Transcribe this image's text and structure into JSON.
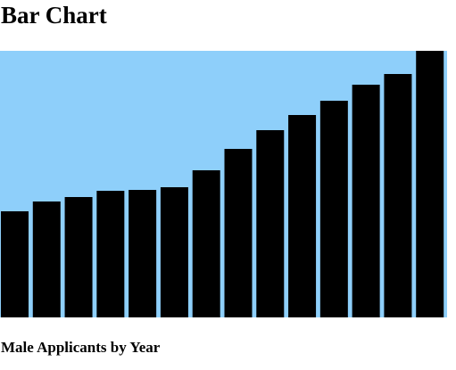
{
  "chart_data": {
    "type": "bar",
    "title": "Bar Chart",
    "caption": "Male Applicants by Year",
    "categories": [
      null,
      null,
      null,
      null,
      null,
      null,
      null,
      null,
      null,
      null,
      null,
      null,
      null,
      null
    ],
    "values": [
      119,
      130,
      135,
      142,
      143,
      146,
      165,
      189,
      210,
      227,
      243,
      261,
      273,
      299
    ],
    "color": "#000000",
    "background": "#8ecffa",
    "ylim": [
      0,
      299
    ]
  }
}
